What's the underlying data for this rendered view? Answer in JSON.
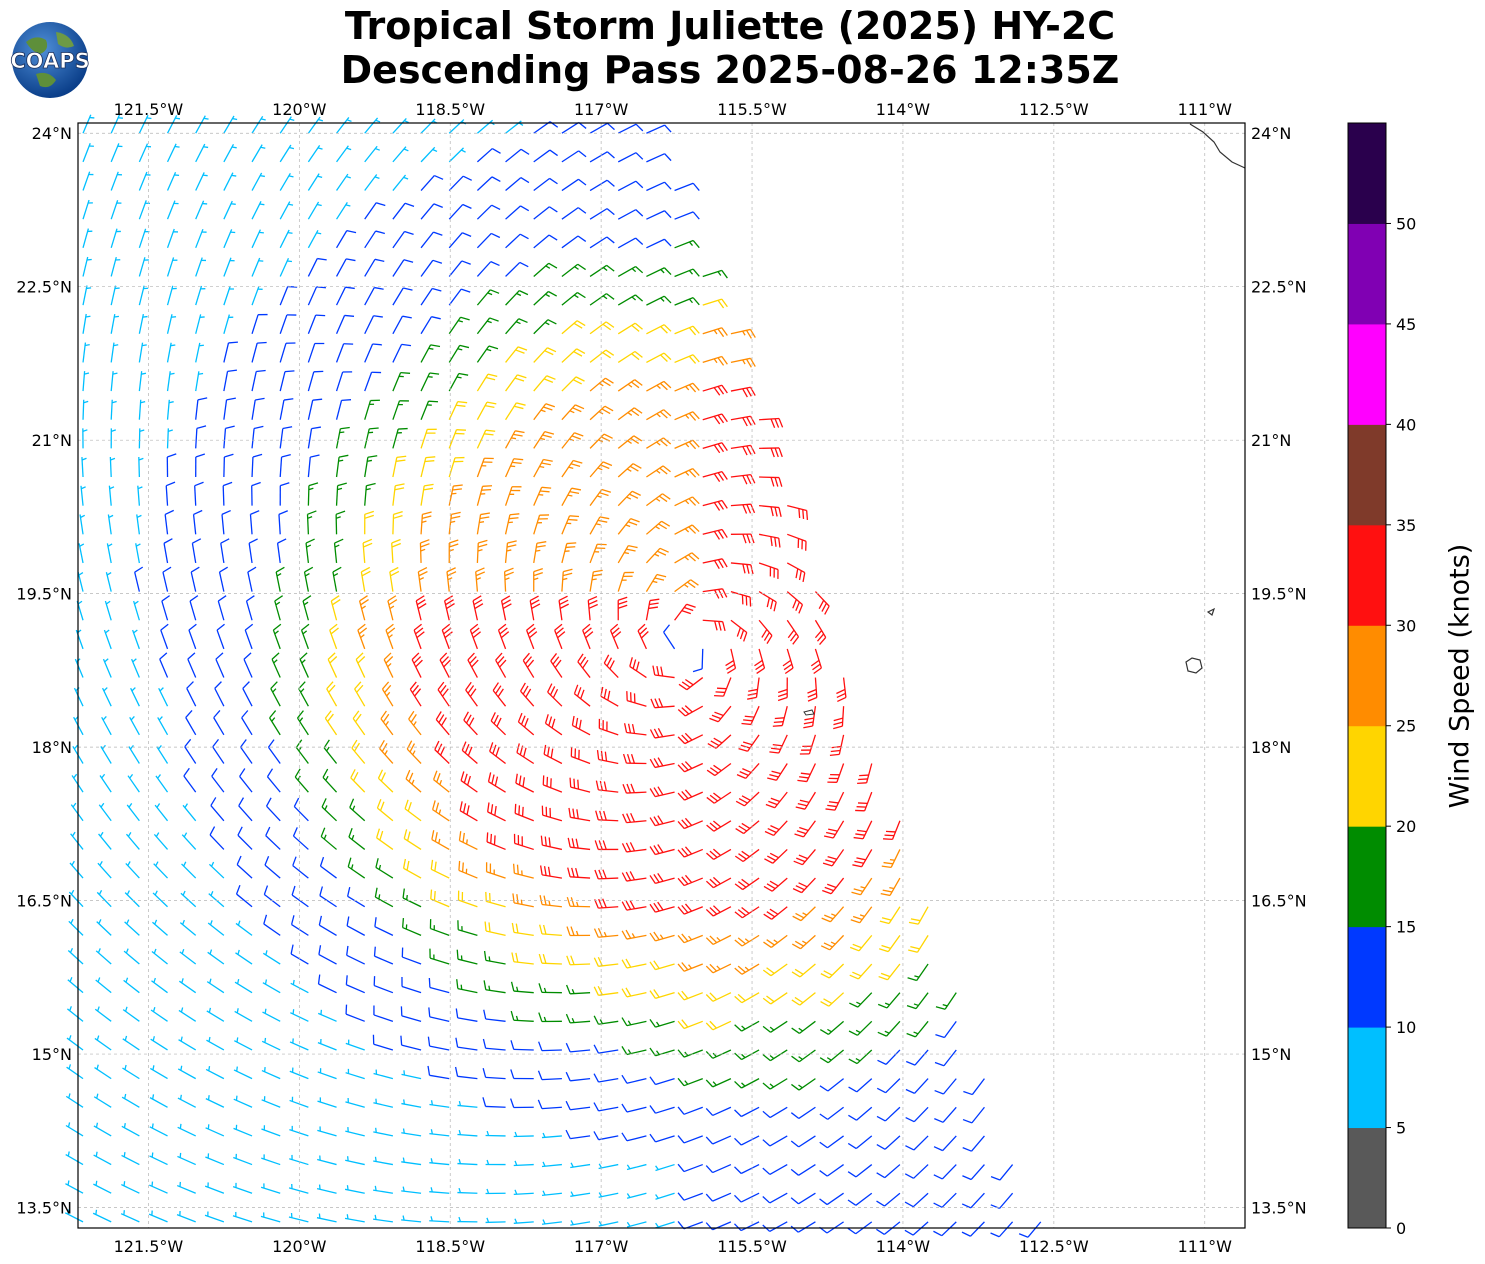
{
  "title": {
    "line1": "Tropical Storm Juliette (2025) HY-2C",
    "line2": "Descending Pass 2025-08-26 12:35Z"
  },
  "logo": {
    "text": "COAPS"
  },
  "map": {
    "lon_range": [
      -122.2,
      -110.6
    ],
    "lat_range": [
      13.3,
      24.1
    ],
    "lon_ticks": [
      "121.5°W",
      "120°W",
      "118.5°W",
      "117°W",
      "115.5°W",
      "114°W",
      "112.5°W",
      "111°W"
    ],
    "lon_tick_values": [
      -121.5,
      -120,
      -118.5,
      -117,
      -115.5,
      -114,
      -112.5,
      -111
    ],
    "lat_ticks": [
      "24°N",
      "22.5°N",
      "21°N",
      "19.5°N",
      "18°N",
      "16.5°N",
      "15°N",
      "13.5°N"
    ],
    "lat_tick_values": [
      24,
      22.5,
      21,
      19.5,
      18,
      16.5,
      15,
      13.5
    ],
    "storm_center": {
      "lon": -116.1,
      "lat": 19.0
    },
    "gridlines": true
  },
  "colorbar": {
    "label": "Wind Speed (knots)",
    "ticks": [
      "0",
      "5",
      "10",
      "15",
      "20",
      "25",
      "30",
      "35",
      "40",
      "45",
      "50"
    ],
    "bins": [
      {
        "min": 0,
        "max": 5,
        "color": "#595959"
      },
      {
        "min": 5,
        "max": 10,
        "color": "#00bfff"
      },
      {
        "min": 10,
        "max": 15,
        "color": "#0039ff"
      },
      {
        "min": 15,
        "max": 20,
        "color": "#008c00"
      },
      {
        "min": 20,
        "max": 25,
        "color": "#ffd500"
      },
      {
        "min": 25,
        "max": 30,
        "color": "#ff8c00"
      },
      {
        "min": 30,
        "max": 35,
        "color": "#ff1010"
      },
      {
        "min": 35,
        "max": 40,
        "color": "#7f3a2a"
      },
      {
        "min": 40,
        "max": 45,
        "color": "#ff00ff"
      },
      {
        "min": 45,
        "max": 50,
        "color": "#8000b3"
      },
      {
        "min": 50,
        "max": 55,
        "color": "#2a004d"
      }
    ]
  }
}
